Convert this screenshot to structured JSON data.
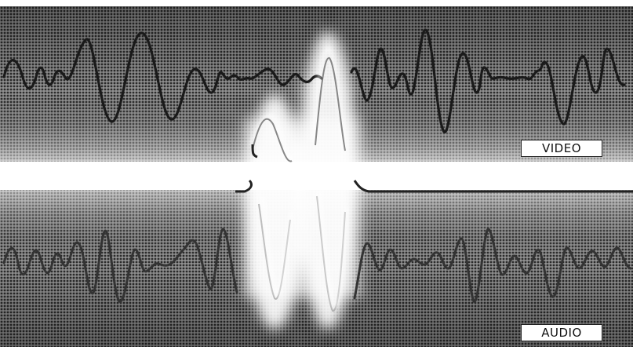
{
  "labels": {
    "video": "VIDEO",
    "audio": "AUDIO"
  },
  "colors": {
    "background": "#ffffff",
    "panel_dark": "#4a4a4a",
    "panel_mid": "#8a8a8a",
    "trace": "#1a1a1a",
    "glow": "#ffffff"
  }
}
